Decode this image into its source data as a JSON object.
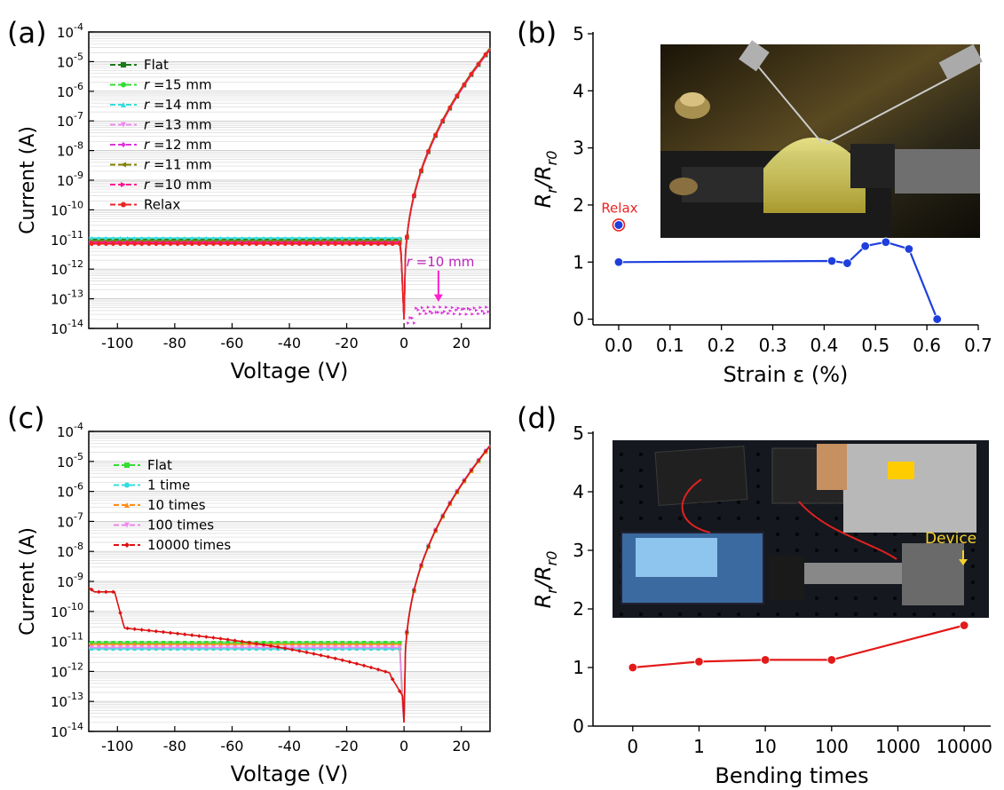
{
  "chart_data": [
    {
      "panel": "(a)",
      "type": "line",
      "xlabel": "Voltage (V)",
      "ylabel": "Current (A)",
      "xlim": [
        -110,
        30
      ],
      "ylim_exp": [
        -14,
        -4
      ],
      "y_scale": "log",
      "xticks": [
        -100,
        -80,
        -60,
        -40,
        -20,
        0,
        20
      ],
      "yticks_exp": [
        -14,
        -13,
        -12,
        -11,
        -10,
        -9,
        -8,
        -7,
        -6,
        -5,
        -4
      ],
      "grid": true,
      "legend_position": "top-left",
      "series": [
        {
          "name": "Flat",
          "color": "#1a7a1a",
          "marker": "square"
        },
        {
          "name": "r =15 mm",
          "color": "#33dd33",
          "marker": "circle"
        },
        {
          "name": "r =14 mm",
          "color": "#33dddd",
          "marker": "triangle-up"
        },
        {
          "name": "r =13 mm",
          "color": "#ee88ee",
          "marker": "triangle-down"
        },
        {
          "name": "r =12 mm",
          "color": "#dd33dd",
          "marker": "diamond"
        },
        {
          "name": "r =11 mm",
          "color": "#808000",
          "marker": "triangle-left"
        },
        {
          "name": "r =10 mm",
          "color": "#ff1493",
          "marker": "triangle-right"
        },
        {
          "name": "Relax",
          "color": "#ee2222",
          "marker": "circle"
        }
      ],
      "annotation": "r =10 mm"
    },
    {
      "panel": "(b)",
      "type": "line",
      "xlabel": "Strain ε (%)",
      "ylabel": "Rr/Rr0",
      "xlim": [
        -0.05,
        0.7
      ],
      "ylim": [
        -0.1,
        5
      ],
      "xticks": [
        "0.0",
        "0.1",
        "0.2",
        "0.3",
        "0.4",
        "0.5",
        "0.6",
        "0.7"
      ],
      "yticks": [
        "0",
        "1",
        "2",
        "3",
        "4",
        "5"
      ],
      "x": [
        0.0,
        0.415,
        0.445,
        0.48,
        0.52,
        0.565,
        0.62
      ],
      "y": [
        1.0,
        1.02,
        0.98,
        1.28,
        1.35,
        1.23,
        0.0
      ],
      "color": "#1e3fdd",
      "relax_point": {
        "x": 0.0,
        "y": 1.65,
        "label": "Relax"
      }
    },
    {
      "panel": "(c)",
      "type": "line",
      "xlabel": "Voltage (V)",
      "ylabel": "Current (A)",
      "xlim": [
        -110,
        30
      ],
      "ylim_exp": [
        -14,
        -4
      ],
      "y_scale": "log",
      "xticks": [
        -100,
        -80,
        -60,
        -40,
        -20,
        0,
        20
      ],
      "yticks_exp": [
        -14,
        -13,
        -12,
        -11,
        -10,
        -9,
        -8,
        -7,
        -6,
        -5,
        -4
      ],
      "grid": true,
      "legend_position": "top-left",
      "series": [
        {
          "name": "Flat",
          "color": "#33dd33",
          "marker": "square"
        },
        {
          "name": "1 time",
          "color": "#33dddd",
          "marker": "circle"
        },
        {
          "name": "10 times",
          "color": "#ff8c1a",
          "marker": "triangle-up"
        },
        {
          "name": "100 times",
          "color": "#ee88ee",
          "marker": "triangle-down"
        },
        {
          "name": "10000 times",
          "color": "#dd1111",
          "marker": "diamond"
        }
      ]
    },
    {
      "panel": "(d)",
      "type": "line",
      "xlabel": "Bending times",
      "ylabel": "Rr/Rr0",
      "categories": [
        "0",
        "1",
        "10",
        "100",
        "1000",
        "10000"
      ],
      "x": [
        0,
        1,
        10,
        100,
        10000
      ],
      "y": [
        1.0,
        1.1,
        1.13,
        1.13,
        1.72
      ],
      "ylim": [
        0,
        5
      ],
      "yticks": [
        "0",
        "1",
        "2",
        "3",
        "4",
        "5"
      ],
      "color": "#e31a1a",
      "photo_label": "Device"
    }
  ]
}
